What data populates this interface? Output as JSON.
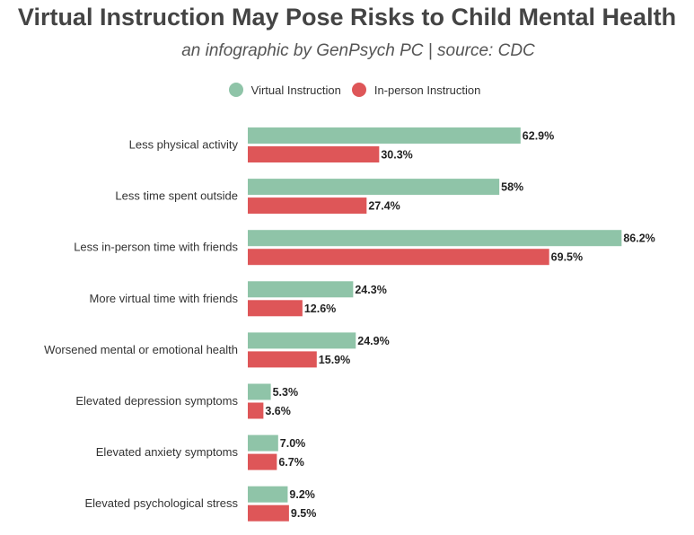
{
  "chart_data": {
    "type": "bar",
    "orientation": "horizontal",
    "title": "Virtual Instruction May Pose Risks to Child Mental Health",
    "subtitle": "an infographic by GenPsych PC | source: CDC",
    "categories": [
      "Less physical activity",
      "Less time spent outside",
      "Less in-person time with friends",
      "More virtual time with friends",
      "Worsened mental or emotional health",
      "Elevated depression symptoms",
      "Elevated anxiety symptoms",
      "Elevated psychological stress"
    ],
    "series": [
      {
        "name": "Virtual Instruction",
        "color": "#8fc4a8",
        "values": [
          62.9,
          58,
          86.2,
          24.3,
          24.9,
          5.3,
          7.0,
          9.2
        ],
        "labels": [
          "62.9%",
          "58%",
          "86.2%",
          "24.3%",
          "24.9%",
          "5.3%",
          "7.0%",
          "9.2%"
        ]
      },
      {
        "name": "In-person Instruction",
        "color": "#de5658",
        "values": [
          30.3,
          27.4,
          69.5,
          12.6,
          15.9,
          3.6,
          6.7,
          9.5
        ],
        "labels": [
          "30.3%",
          "27.4%",
          "69.5%",
          "12.6%",
          "15.9%",
          "3.6%",
          "6.7%",
          "9.5%"
        ]
      }
    ],
    "xlim": [
      0,
      100
    ],
    "grid": false,
    "legend_position": "top-center"
  }
}
